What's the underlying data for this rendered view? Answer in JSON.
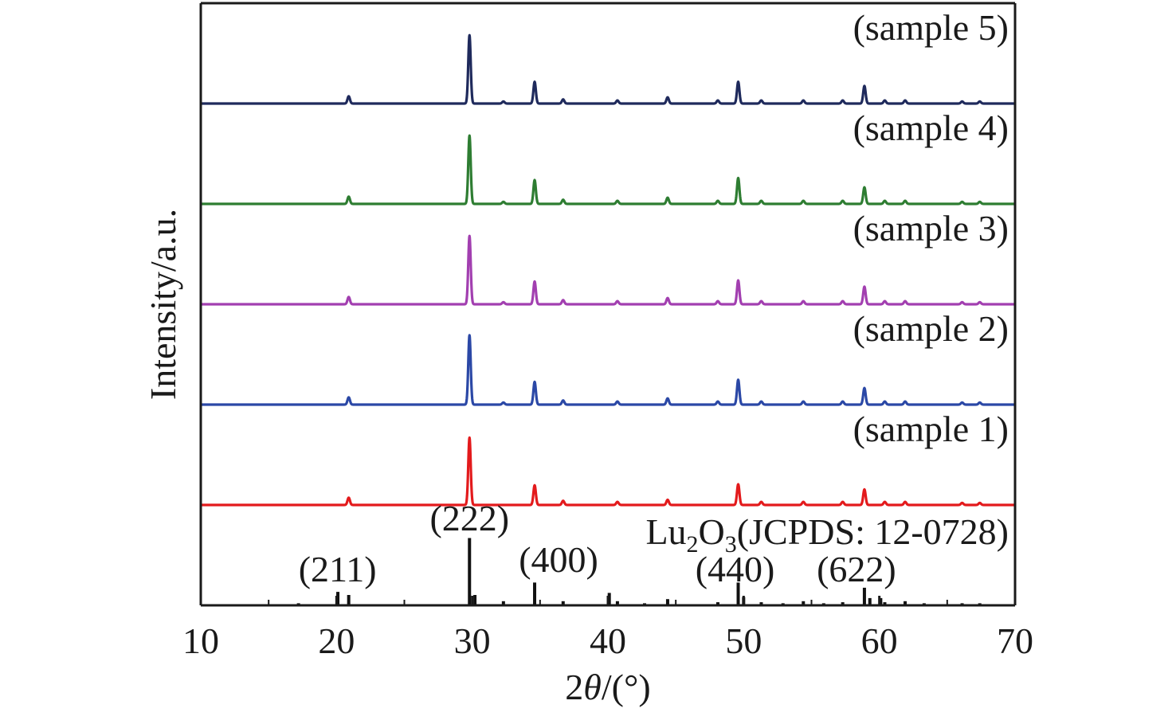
{
  "chart_data": {
    "type": "line",
    "title": "",
    "xlabel": "2θ/(°)",
    "ylabel": "Intensity/a.u.",
    "xlim": [
      10,
      70
    ],
    "x_ticks": [
      10,
      20,
      30,
      40,
      50,
      60,
      70
    ],
    "grid": false,
    "legend": "labels at right of each stacked trace",
    "y_ticks_shown": false,
    "stacked_offset": true,
    "series": [
      {
        "name": "(sample 1)",
        "color": "#e31a1c",
        "baseline_level": 0,
        "peaks": [
          [
            20.9,
            0.07
          ],
          [
            29.8,
            0.65
          ],
          [
            34.6,
            0.19
          ],
          [
            36.7,
            0.04
          ],
          [
            40.7,
            0.03
          ],
          [
            44.4,
            0.05
          ],
          [
            49.6,
            0.2
          ],
          [
            51.3,
            0.03
          ],
          [
            54.4,
            0.03
          ],
          [
            57.3,
            0.03
          ],
          [
            58.9,
            0.15
          ],
          [
            60.4,
            0.03
          ],
          [
            61.9,
            0.03
          ],
          [
            66.1,
            0.02
          ],
          [
            67.4,
            0.02
          ]
        ]
      },
      {
        "name": "(sample 2)",
        "color": "#2b48a6",
        "baseline_level": 1,
        "peaks": [
          [
            20.9,
            0.07
          ],
          [
            29.8,
            0.67
          ],
          [
            32.3,
            0.02
          ],
          [
            34.6,
            0.22
          ],
          [
            36.7,
            0.04
          ],
          [
            40.7,
            0.03
          ],
          [
            44.4,
            0.06
          ],
          [
            48.1,
            0.03
          ],
          [
            49.6,
            0.24
          ],
          [
            51.3,
            0.03
          ],
          [
            54.4,
            0.03
          ],
          [
            57.3,
            0.03
          ],
          [
            58.9,
            0.16
          ],
          [
            60.4,
            0.03
          ],
          [
            61.9,
            0.03
          ],
          [
            66.1,
            0.02
          ],
          [
            67.4,
            0.02
          ]
        ]
      },
      {
        "name": "(sample 3)",
        "color": "#a23fb0",
        "baseline_level": 2,
        "peaks": [
          [
            20.9,
            0.07
          ],
          [
            29.8,
            0.66
          ],
          [
            32.3,
            0.02
          ],
          [
            34.6,
            0.22
          ],
          [
            36.7,
            0.04
          ],
          [
            40.7,
            0.03
          ],
          [
            44.4,
            0.06
          ],
          [
            48.1,
            0.03
          ],
          [
            49.6,
            0.23
          ],
          [
            51.3,
            0.03
          ],
          [
            54.4,
            0.03
          ],
          [
            57.3,
            0.03
          ],
          [
            58.9,
            0.17
          ],
          [
            60.4,
            0.03
          ],
          [
            61.9,
            0.03
          ],
          [
            66.1,
            0.02
          ],
          [
            67.4,
            0.02
          ]
        ]
      },
      {
        "name": "(sample 4)",
        "color": "#2e7d32",
        "baseline_level": 3,
        "peaks": [
          [
            20.9,
            0.07
          ],
          [
            29.8,
            0.66
          ],
          [
            32.3,
            0.02
          ],
          [
            34.6,
            0.23
          ],
          [
            36.7,
            0.04
          ],
          [
            40.7,
            0.03
          ],
          [
            44.4,
            0.06
          ],
          [
            48.1,
            0.03
          ],
          [
            49.6,
            0.25
          ],
          [
            51.3,
            0.03
          ],
          [
            54.4,
            0.03
          ],
          [
            57.3,
            0.03
          ],
          [
            58.9,
            0.16
          ],
          [
            60.4,
            0.03
          ],
          [
            61.9,
            0.03
          ],
          [
            66.1,
            0.02
          ],
          [
            67.4,
            0.02
          ]
        ]
      },
      {
        "name": "(sample 5)",
        "color": "#1f2a5c",
        "baseline_level": 4,
        "peaks": [
          [
            20.9,
            0.07
          ],
          [
            29.8,
            0.66
          ],
          [
            32.3,
            0.02
          ],
          [
            34.6,
            0.21
          ],
          [
            36.7,
            0.04
          ],
          [
            40.7,
            0.03
          ],
          [
            44.4,
            0.06
          ],
          [
            48.1,
            0.03
          ],
          [
            49.6,
            0.21
          ],
          [
            51.3,
            0.03
          ],
          [
            54.4,
            0.03
          ],
          [
            57.3,
            0.03
          ],
          [
            58.9,
            0.17
          ],
          [
            60.4,
            0.03
          ],
          [
            61.9,
            0.03
          ],
          [
            66.1,
            0.02
          ],
          [
            67.4,
            0.02
          ]
        ]
      }
    ],
    "reference": {
      "label_main": "Lu",
      "label_sub1": "2",
      "label_mid": "O",
      "label_sub2": "3",
      "label_tail": "(JCPDS: 12-0728)",
      "color": "#111111",
      "baseline_level": -1,
      "sticks": [
        [
          17.2,
          0.02
        ],
        [
          20.1,
          0.13
        ],
        [
          20.9,
          0.1
        ],
        [
          29.8,
          0.65
        ],
        [
          30.2,
          0.1
        ],
        [
          32.3,
          0.04
        ],
        [
          34.6,
          0.22
        ],
        [
          36.7,
          0.04
        ],
        [
          40.1,
          0.12
        ],
        [
          40.7,
          0.04
        ],
        [
          42.7,
          0.02
        ],
        [
          44.4,
          0.06
        ],
        [
          48.1,
          0.03
        ],
        [
          49.6,
          0.22
        ],
        [
          50.0,
          0.08
        ],
        [
          51.3,
          0.03
        ],
        [
          52.9,
          0.02
        ],
        [
          54.4,
          0.04
        ],
        [
          55.9,
          0.02
        ],
        [
          57.3,
          0.03
        ],
        [
          58.9,
          0.17
        ],
        [
          59.3,
          0.07
        ],
        [
          60.1,
          0.07
        ],
        [
          60.4,
          0.03
        ],
        [
          61.9,
          0.04
        ],
        [
          63.3,
          0.02
        ],
        [
          66.1,
          0.02
        ],
        [
          67.4,
          0.02
        ],
        [
          68.7,
          0.01
        ]
      ]
    },
    "annotations": [
      {
        "text": "(211)",
        "x": 20.9
      },
      {
        "text": "(222)",
        "x": 29.8
      },
      {
        "text": "(400)",
        "x": 34.6
      },
      {
        "text": "(440)",
        "x": 49.6
      },
      {
        "text": "(622)",
        "x": 58.9
      }
    ]
  },
  "colors": {
    "axis": "#1a1a1a",
    "background": "#ffffff"
  }
}
